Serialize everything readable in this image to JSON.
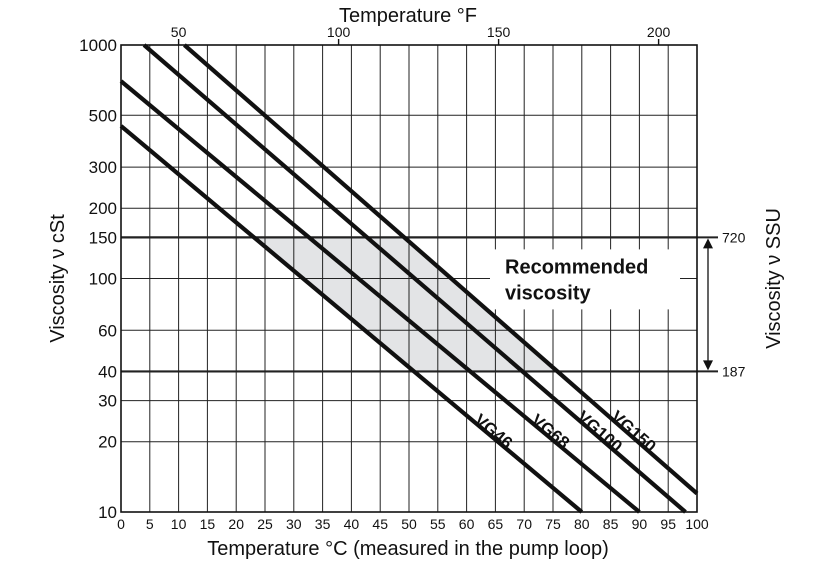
{
  "chart_data": {
    "type": "line",
    "x_axis": {
      "label": "Temperature °C (measured in the pump loop)",
      "range": [
        0,
        100
      ],
      "ticks": [
        0,
        5,
        10,
        15,
        20,
        25,
        30,
        35,
        40,
        45,
        50,
        55,
        60,
        65,
        70,
        75,
        80,
        85,
        90,
        95,
        100
      ]
    },
    "x2_axis": {
      "label": "Temperature °F",
      "ticks": [
        50,
        100,
        150,
        200
      ]
    },
    "y_axis": {
      "label": "Viscosity ν cSt",
      "scale": "log",
      "range": [
        10,
        1000
      ],
      "ticks": [
        10,
        20,
        30,
        40,
        60,
        100,
        150,
        200,
        300,
        500,
        1000
      ]
    },
    "y2_axis": {
      "label": "Viscosity ν SSU",
      "ticks": [
        {
          "label": "720",
          "at_cst": 150
        },
        {
          "label": "187",
          "at_cst": 40
        }
      ]
    },
    "grid": true,
    "series": [
      {
        "name": "VG46",
        "x": [
          0,
          80
        ],
        "y": [
          450,
          10
        ]
      },
      {
        "name": "VG68",
        "x": [
          0,
          90
        ],
        "y": [
          700,
          10
        ]
      },
      {
        "name": "VG100",
        "x": [
          4,
          98
        ],
        "y": [
          1000,
          10
        ]
      },
      {
        "name": "VG150",
        "x": [
          11,
          100
        ],
        "y": [
          1000,
          12
        ]
      }
    ],
    "recommended_band": {
      "label": "Recommended viscosity",
      "cst_range": [
        40,
        150
      ]
    }
  }
}
